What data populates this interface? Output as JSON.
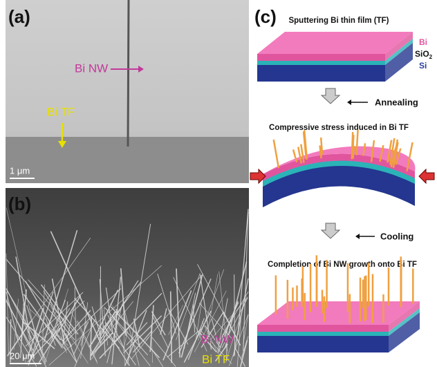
{
  "panels": [
    {
      "label": "(a)",
      "annotations": [
        "Bi NW",
        "Bi TF"
      ],
      "scale_bar": "1 μm"
    },
    {
      "label": "(b)",
      "annotations": [
        "Bi NW",
        "Bi TF"
      ],
      "scale_bar": "20 μm"
    },
    {
      "label": "(c)",
      "steps": [
        "Sputtering Bi thin film (TF)",
        "Compressive stress induced  in Bi TF",
        "Completion of Bi NW growth onto Bi TF"
      ],
      "layers": [
        {
          "text": "Bi"
        },
        {
          "text": "SiO",
          "subscript": "2"
        },
        {
          "text": "Si"
        }
      ],
      "processes": [
        "Annealing",
        "Cooling"
      ]
    }
  ]
}
